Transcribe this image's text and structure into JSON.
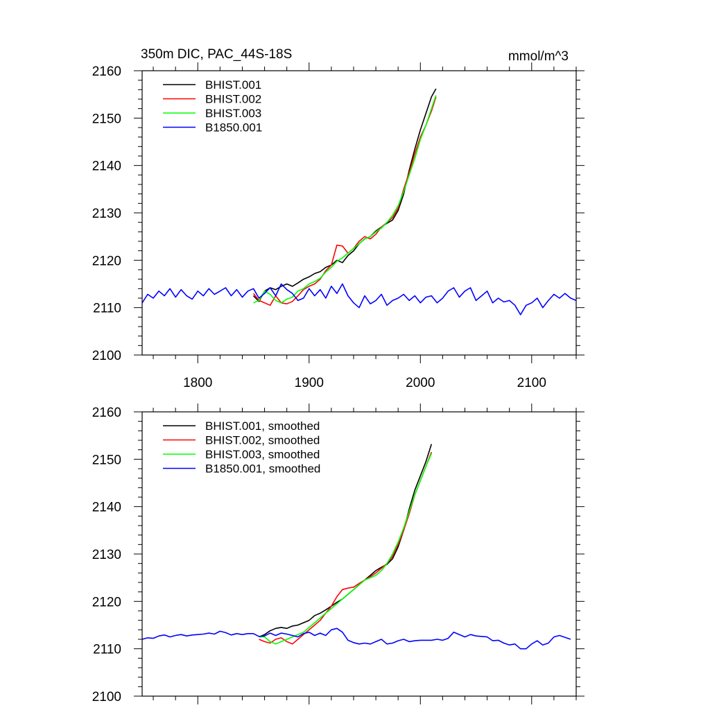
{
  "chart_data": [
    {
      "type": "line",
      "title": "350m DIC, PAC_44S-18S",
      "units": "mmol/m^3",
      "xlim": [
        1750,
        2140
      ],
      "ylim": [
        2100,
        2160
      ],
      "xticks": [
        "1800",
        "1900",
        "2000",
        "2100"
      ],
      "yticks": [
        "2100",
        "2110",
        "2120",
        "2130",
        "2140",
        "2150",
        "2160"
      ],
      "legend": {
        "position": "top-left"
      },
      "series": [
        {
          "name": "BHIST.001",
          "color": "#000000",
          "x": [
            1850,
            1855,
            1860,
            1865,
            1870,
            1875,
            1880,
            1885,
            1890,
            1895,
            1900,
            1905,
            1910,
            1915,
            1920,
            1925,
            1930,
            1935,
            1940,
            1945,
            1950,
            1955,
            1960,
            1965,
            1970,
            1975,
            1980,
            1985,
            1990,
            1995,
            2000,
            2005,
            2010,
            2014
          ],
          "y": [
            2112.5,
            2111.3,
            2113.5,
            2114.2,
            2113.8,
            2114.5,
            2115.0,
            2114.5,
            2115.2,
            2116.0,
            2116.5,
            2117.2,
            2117.6,
            2118.5,
            2119.0,
            2120.0,
            2119.5,
            2121.0,
            2122.0,
            2123.5,
            2124.5,
            2125.0,
            2126.2,
            2127.0,
            2127.8,
            2128.5,
            2130.5,
            2134.0,
            2139.0,
            2143.5,
            2147.5,
            2151.0,
            2154.5,
            2156.2
          ]
        },
        {
          "name": "BHIST.002",
          "color": "#ff0000",
          "x": [
            1850,
            1855,
            1860,
            1865,
            1870,
            1875,
            1880,
            1885,
            1890,
            1895,
            1900,
            1905,
            1910,
            1915,
            1920,
            1925,
            1930,
            1935,
            1940,
            1945,
            1950,
            1955,
            1960,
            1965,
            1970,
            1975,
            1980,
            1985,
            1990,
            1995,
            2000,
            2005,
            2010,
            2014
          ],
          "y": [
            2113.0,
            2111.5,
            2111.0,
            2110.5,
            2112.5,
            2111.0,
            2110.8,
            2111.3,
            2112.5,
            2113.8,
            2114.5,
            2115.0,
            2116.0,
            2117.8,
            2119.0,
            2123.2,
            2123.0,
            2121.5,
            2122.5,
            2124.0,
            2125.0,
            2124.5,
            2125.5,
            2127.0,
            2128.0,
            2129.0,
            2131.0,
            2135.0,
            2138.5,
            2142.5,
            2146.0,
            2148.5,
            2151.5,
            2154.5
          ]
        },
        {
          "name": "BHIST.003",
          "color": "#00ff00",
          "x": [
            1850,
            1855,
            1860,
            1865,
            1870,
            1875,
            1880,
            1885,
            1890,
            1895,
            1900,
            1905,
            1910,
            1915,
            1920,
            1925,
            1930,
            1935,
            1940,
            1945,
            1950,
            1955,
            1960,
            1965,
            1970,
            1975,
            1980,
            1985,
            1990,
            1995,
            2000,
            2005,
            2010,
            2014
          ],
          "y": [
            2111.0,
            2111.5,
            2113.5,
            2112.8,
            2111.5,
            2111.0,
            2111.8,
            2112.2,
            2113.5,
            2114.0,
            2115.0,
            2115.5,
            2116.2,
            2117.5,
            2118.5,
            2119.8,
            2120.5,
            2121.5,
            2122.5,
            2123.5,
            2124.5,
            2125.0,
            2126.0,
            2126.8,
            2128.0,
            2129.5,
            2131.5,
            2134.5,
            2138.0,
            2141.5,
            2145.5,
            2148.5,
            2152.0,
            2154.8
          ]
        },
        {
          "name": "B1850.001",
          "color": "#0000ff",
          "x": [
            1750,
            1755,
            1760,
            1765,
            1770,
            1775,
            1780,
            1785,
            1790,
            1795,
            1800,
            1805,
            1810,
            1815,
            1820,
            1825,
            1830,
            1835,
            1840,
            1845,
            1850,
            1855,
            1860,
            1865,
            1870,
            1875,
            1880,
            1885,
            1890,
            1895,
            1900,
            1905,
            1910,
            1915,
            1920,
            1925,
            1930,
            1935,
            1940,
            1945,
            1950,
            1955,
            1960,
            1965,
            1970,
            1975,
            1980,
            1985,
            1990,
            1995,
            2000,
            2005,
            2010,
            2015,
            2020,
            2025,
            2030,
            2035,
            2040,
            2045,
            2050,
            2055,
            2060,
            2065,
            2070,
            2075,
            2080,
            2085,
            2090,
            2095,
            2100,
            2105,
            2110,
            2115,
            2120,
            2125,
            2130,
            2135,
            2140
          ],
          "y": [
            2111.0,
            2112.8,
            2112.0,
            2113.5,
            2112.5,
            2114.0,
            2112.2,
            2113.8,
            2112.5,
            2111.8,
            2113.5,
            2112.5,
            2114.0,
            2112.8,
            2113.5,
            2114.2,
            2112.5,
            2113.8,
            2112.2,
            2113.5,
            2114.0,
            2112.0,
            2113.0,
            2114.2,
            2112.5,
            2115.0,
            2113.8,
            2113.0,
            2111.5,
            2112.0,
            2114.0,
            2112.5,
            2113.8,
            2112.0,
            2114.5,
            2113.0,
            2115.0,
            2112.5,
            2111.0,
            2110.0,
            2112.5,
            2110.8,
            2111.5,
            2112.8,
            2110.5,
            2111.5,
            2112.0,
            2112.8,
            2111.5,
            2112.5,
            2111.0,
            2112.2,
            2112.5,
            2111.0,
            2112.0,
            2113.5,
            2114.2,
            2112.2,
            2113.5,
            2114.2,
            2111.5,
            2112.5,
            2113.5,
            2111.0,
            2112.0,
            2111.2,
            2111.5,
            2110.5,
            2108.5,
            2110.5,
            2111.0,
            2112.0,
            2110.0,
            2111.5,
            2112.8,
            2112.0,
            2113.0,
            2112.0,
            2111.5
          ]
        }
      ]
    },
    {
      "type": "line",
      "xlim": [
        1750,
        2140
      ],
      "ylim": [
        2100,
        2160
      ],
      "yticks": [
        "2100",
        "2110",
        "2120",
        "2130",
        "2140",
        "2150",
        "2160"
      ],
      "legend": {
        "position": "top-left"
      },
      "series": [
        {
          "name": "BHIST.001, smoothed",
          "color": "#000000",
          "x": [
            1855,
            1860,
            1865,
            1870,
            1875,
            1880,
            1885,
            1890,
            1895,
            1900,
            1905,
            1910,
            1915,
            1920,
            1925,
            1930,
            1935,
            1940,
            1945,
            1950,
            1955,
            1960,
            1965,
            1970,
            1975,
            1980,
            1985,
            1990,
            1995,
            2000,
            2005,
            2010
          ],
          "y": [
            2112.5,
            2113.0,
            2113.8,
            2114.3,
            2114.5,
            2114.3,
            2114.8,
            2115.0,
            2115.5,
            2116.0,
            2117.0,
            2117.5,
            2118.2,
            2119.0,
            2119.8,
            2120.5,
            2121.5,
            2122.5,
            2123.5,
            2124.5,
            2125.5,
            2126.5,
            2127.2,
            2127.8,
            2129.0,
            2131.5,
            2135.0,
            2139.5,
            2143.5,
            2146.5,
            2149.5,
            2153.2
          ]
        },
        {
          "name": "BHIST.002, smoothed",
          "color": "#ff0000",
          "x": [
            1855,
            1860,
            1865,
            1870,
            1875,
            1880,
            1885,
            1890,
            1895,
            1900,
            1905,
            1910,
            1915,
            1920,
            1925,
            1930,
            1935,
            1940,
            1945,
            1950,
            1955,
            1960,
            1965,
            1970,
            1975,
            1980,
            1985,
            1990,
            1995,
            2000,
            2005,
            2010
          ],
          "y": [
            2112.0,
            2111.5,
            2111.2,
            2112.0,
            2112.3,
            2111.5,
            2111.0,
            2112.0,
            2113.0,
            2114.0,
            2115.0,
            2116.0,
            2117.5,
            2119.0,
            2121.0,
            2122.5,
            2122.8,
            2123.0,
            2123.8,
            2124.5,
            2125.2,
            2126.0,
            2127.0,
            2128.0,
            2129.5,
            2132.0,
            2135.0,
            2138.5,
            2142.5,
            2145.5,
            2148.5,
            2151.5
          ]
        },
        {
          "name": "BHIST.003, smoothed",
          "color": "#00ff00",
          "x": [
            1855,
            1860,
            1865,
            1870,
            1875,
            1880,
            1885,
            1890,
            1895,
            1900,
            1905,
            1910,
            1915,
            1920,
            1925,
            1930,
            1935,
            1940,
            1945,
            1950,
            1955,
            1960,
            1965,
            1970,
            1975,
            1980,
            1985,
            1990,
            1995,
            2000,
            2005,
            2010
          ],
          "y": [
            2112.5,
            2112.5,
            2111.5,
            2111.0,
            2111.5,
            2112.0,
            2112.5,
            2113.0,
            2113.5,
            2114.5,
            2115.5,
            2116.5,
            2117.5,
            2118.5,
            2119.5,
            2120.5,
            2121.5,
            2122.5,
            2123.5,
            2124.5,
            2125.0,
            2125.5,
            2126.5,
            2128.0,
            2130.0,
            2132.5,
            2135.5,
            2139.0,
            2142.5,
            2145.5,
            2148.5,
            2151.2
          ]
        },
        {
          "name": "B1850.001, smoothed",
          "color": "#0000ff",
          "x": [
            1750,
            1755,
            1760,
            1765,
            1770,
            1775,
            1780,
            1785,
            1790,
            1795,
            1800,
            1805,
            1810,
            1815,
            1820,
            1825,
            1830,
            1835,
            1840,
            1845,
            1850,
            1855,
            1860,
            1865,
            1870,
            1875,
            1880,
            1885,
            1890,
            1895,
            1900,
            1905,
            1910,
            1915,
            1920,
            1925,
            1930,
            1935,
            1940,
            1945,
            1950,
            1955,
            1960,
            1965,
            1970,
            1975,
            1980,
            1985,
            1990,
            1995,
            2000,
            2005,
            2010,
            2015,
            2020,
            2025,
            2030,
            2035,
            2040,
            2045,
            2050,
            2055,
            2060,
            2065,
            2070,
            2075,
            2080,
            2085,
            2090,
            2095,
            2100,
            2105,
            2110,
            2115,
            2120,
            2125,
            2130,
            2135
          ],
          "y": [
            2112.0,
            2112.3,
            2112.2,
            2112.7,
            2112.9,
            2112.5,
            2112.8,
            2113.0,
            2112.7,
            2112.9,
            2113.0,
            2113.1,
            2113.3,
            2113.1,
            2113.7,
            2113.4,
            2112.9,
            2113.2,
            2113.0,
            2113.2,
            2113.2,
            2112.6,
            2112.7,
            2113.3,
            2112.8,
            2113.3,
            2113.1,
            2112.8,
            2112.5,
            2113.2,
            2113.5,
            2112.8,
            2113.3,
            2112.8,
            2114.0,
            2114.3,
            2113.5,
            2111.8,
            2111.3,
            2111.0,
            2111.2,
            2111.0,
            2111.5,
            2112.0,
            2111.0,
            2111.2,
            2111.7,
            2112.0,
            2111.5,
            2111.7,
            2111.8,
            2111.8,
            2111.8,
            2112.0,
            2111.8,
            2112.2,
            2113.5,
            2113.0,
            2112.5,
            2113.0,
            2112.7,
            2112.6,
            2112.5,
            2111.7,
            2111.8,
            2111.2,
            2110.8,
            2111.0,
            2110.0,
            2110.0,
            2111.0,
            2111.7,
            2110.8,
            2111.2,
            2112.5,
            2112.8,
            2112.4,
            2112.0
          ]
        }
      ]
    }
  ]
}
